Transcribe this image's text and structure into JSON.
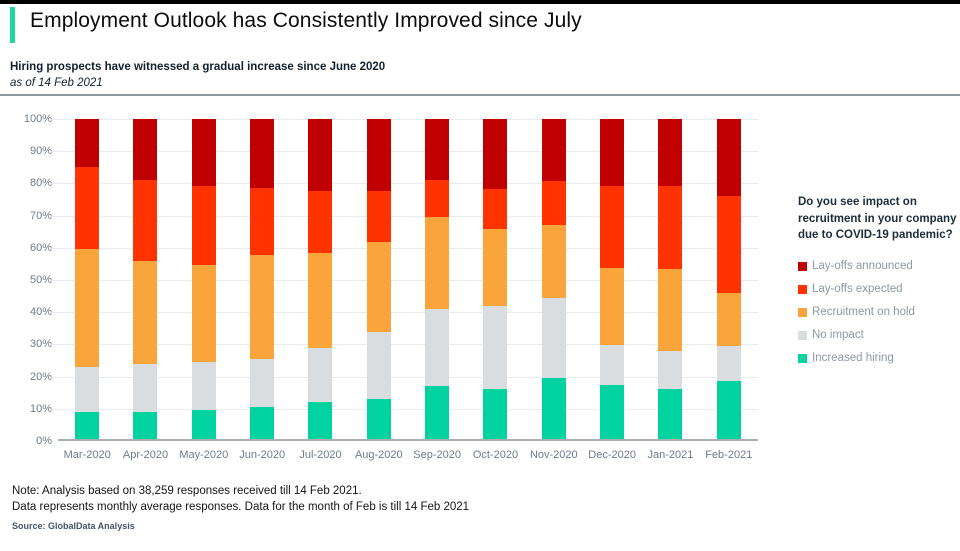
{
  "header": {
    "title": "Employment Outlook has Consistently Improved since July",
    "subtitle": "Hiring prospects have witnessed a gradual increase since June 2020",
    "as_of": "as of 14 Feb 2021"
  },
  "legend": {
    "question": "Do you see impact on recruitment in your company due to COVID-19 pandemic?",
    "items": [
      {
        "label": "Lay-offs announced",
        "color": "#c00000"
      },
      {
        "label": "Lay-offs expected",
        "color": "#ff3300"
      },
      {
        "label": "Recruitment on hold",
        "color": "#faa43c"
      },
      {
        "label": "No impact",
        "color": "#d9dde0"
      },
      {
        "label": "Increased hiring",
        "color": "#00d2a0"
      }
    ]
  },
  "chart_data": {
    "type": "bar",
    "stacked": true,
    "unit": "percent",
    "title": "Hiring prospects have witnessed a gradual increase since June 2020",
    "xlabel": "",
    "ylabel": "",
    "ylim": [
      0,
      100
    ],
    "grid": true,
    "legend_position": "right",
    "yticks": [
      "100%",
      "90%",
      "80%",
      "70%",
      "60%",
      "50%",
      "40%",
      "30%",
      "20%",
      "10%",
      "0%"
    ],
    "categories": [
      "Mar-2020",
      "Apr-2020",
      "May-2020",
      "Jun-2020",
      "Jul-2020",
      "Aug-2020",
      "Sep-2020",
      "Oct-2020",
      "Nov-2020",
      "Dec-2020",
      "Jan-2021",
      "Feb-2021"
    ],
    "series": [
      {
        "name": "Increased hiring",
        "color": "#00d2a0",
        "values": [
          8.5,
          8.5,
          9,
          10,
          11.5,
          12.5,
          16.5,
          15.5,
          19,
          17,
          15.5,
          18
        ]
      },
      {
        "name": "No impact",
        "color": "#d9dde0",
        "values": [
          14,
          15,
          15,
          15,
          17,
          21,
          24,
          26,
          25,
          12.5,
          12,
          11
        ]
      },
      {
        "name": "Recruitment on hold",
        "color": "#faa43c",
        "values": [
          37,
          32,
          30.5,
          32.5,
          29.5,
          28,
          29,
          24,
          23,
          24,
          25.5,
          16.5
        ]
      },
      {
        "name": "Lay-offs expected",
        "color": "#ff3300",
        "values": [
          25.5,
          25.5,
          24.5,
          21,
          19.5,
          16,
          11.5,
          12.5,
          13.5,
          25.5,
          26,
          30.5
        ]
      },
      {
        "name": "Lay-offs announced",
        "color": "#c00000",
        "values": [
          15,
          19,
          21,
          21.5,
          22.5,
          22.5,
          19,
          22,
          19.5,
          21,
          21,
          24
        ]
      }
    ]
  },
  "notes": {
    "line1": "Note: Analysis based on 38,259 responses received till 14 Feb 2021.",
    "line2": "Data represents monthly average responses. Data for the month of Feb is till 14 Feb 2021",
    "source": "Source: GlobalData Analysis"
  },
  "colors": {
    "accent_mint": "#1ed7a0",
    "top_bar": "#000000",
    "gridline": "#e9ecee",
    "axis_baseline": "#a9aeb3",
    "axis_label": "#6e7b89",
    "legend_question": "#1d2c3a",
    "legend_label": "#8e99a2",
    "source_text": "#44546a"
  }
}
